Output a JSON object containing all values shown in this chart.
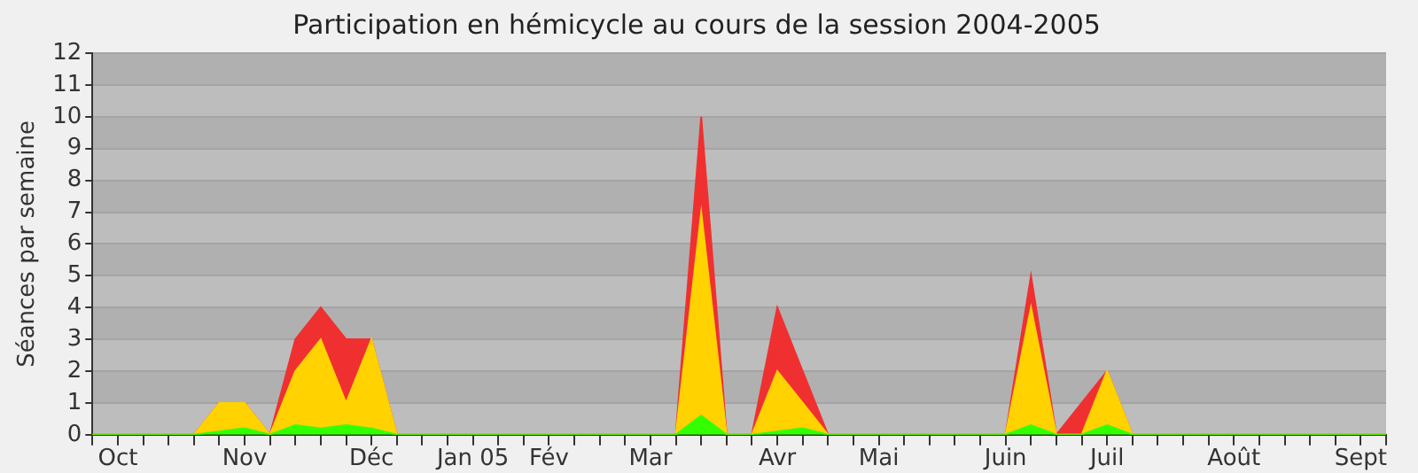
{
  "chart_data": {
    "type": "area",
    "stacked": true,
    "title": "Participation en hémicycle au cours de la session 2004-2005",
    "ylabel": "Séances par semaine",
    "categories": [
      null,
      "Oct",
      null,
      null,
      null,
      null,
      "Nov",
      null,
      null,
      null,
      null,
      "Déc",
      null,
      null,
      null,
      "Jan 05",
      null,
      null,
      "Fév",
      null,
      null,
      null,
      "Mar",
      null,
      null,
      null,
      null,
      "Avr",
      null,
      null,
      null,
      "Mai",
      null,
      null,
      null,
      null,
      "Juin",
      null,
      null,
      null,
      "Juil",
      null,
      null,
      null,
      null,
      "Août",
      null,
      null,
      null,
      null,
      "Sept",
      null
    ],
    "series": [
      {
        "color": "#33ff00",
        "values": [
          0,
          0,
          0,
          0,
          0,
          0.1,
          0.2,
          0,
          0.3,
          0.2,
          0.3,
          0.2,
          0,
          0,
          0,
          0,
          0,
          0,
          0,
          0,
          0,
          0,
          0,
          0,
          0.6,
          0,
          0,
          0.1,
          0.2,
          0,
          0,
          0,
          0,
          0,
          0,
          0,
          0,
          0.3,
          0,
          0,
          0.3,
          0,
          0,
          0,
          0,
          0,
          0,
          0,
          0,
          0,
          0,
          0
        ]
      },
      {
        "color": "#ffd200",
        "values": [
          0,
          0,
          0,
          0,
          0,
          0.9,
          0.8,
          0,
          1.7,
          2.8,
          0.7,
          2.8,
          0,
          0,
          0,
          0,
          0,
          0,
          0,
          0,
          0,
          0,
          0,
          0,
          6.4,
          0,
          0,
          1.9,
          0.8,
          0,
          0,
          0,
          0,
          0,
          0,
          0,
          0,
          3.7,
          0,
          0,
          1.7,
          0,
          0,
          0,
          0,
          0,
          0,
          0,
          0,
          0,
          0,
          0
        ]
      },
      {
        "color": "#f03030",
        "values": [
          0,
          0,
          0,
          0,
          0,
          0,
          0,
          0,
          1,
          1,
          2,
          0,
          0,
          0,
          0,
          0,
          0,
          0,
          0,
          0,
          0,
          0,
          0,
          0,
          3,
          0,
          0,
          2,
          1,
          0,
          0,
          0,
          0,
          0,
          0,
          0,
          0,
          1,
          0,
          1,
          0,
          0,
          0,
          0,
          0,
          0,
          0,
          0,
          0,
          0,
          0,
          0
        ]
      }
    ],
    "ylim": [
      0,
      12
    ],
    "yticks": [
      0,
      1,
      2,
      3,
      4,
      5,
      6,
      7,
      8,
      9,
      10,
      11,
      12
    ],
    "grid": "y"
  }
}
